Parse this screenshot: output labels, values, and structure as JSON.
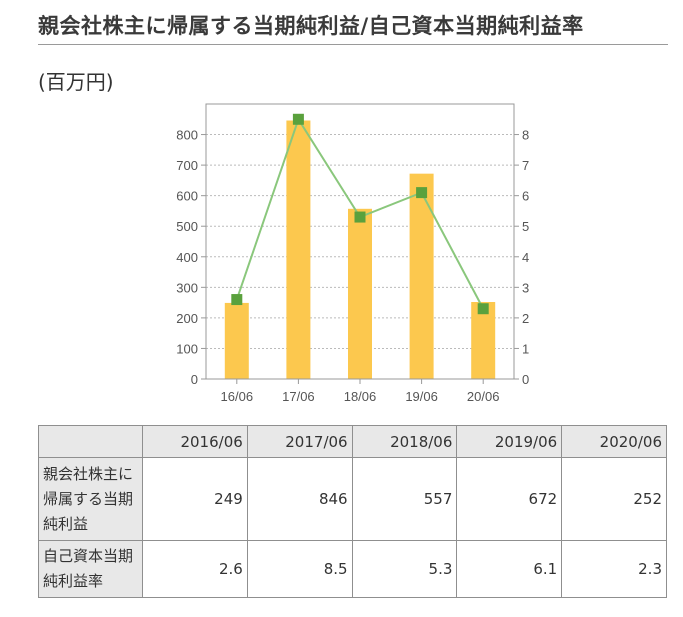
{
  "title": "親会社株主に帰属する当期純利益/自己資本当期純利益率",
  "unit_label": "(百万円)",
  "chart_data": {
    "type": "bar",
    "categories": [
      "16/06",
      "17/06",
      "18/06",
      "19/06",
      "20/06"
    ],
    "series": [
      {
        "name": "親会社株主に帰属する当期純利益",
        "type": "bar",
        "axis": "left",
        "values": [
          249,
          846,
          557,
          672,
          252
        ]
      },
      {
        "name": "自己資本当期純利益率",
        "type": "line",
        "axis": "right",
        "values": [
          2.6,
          8.5,
          5.3,
          6.1,
          2.3
        ]
      }
    ],
    "y_left": {
      "ylim": [
        0,
        900
      ],
      "ticks": [
        0,
        100,
        200,
        300,
        400,
        500,
        600,
        700,
        800
      ]
    },
    "y_right": {
      "ylim": [
        0,
        9
      ],
      "ticks": [
        0,
        1,
        2,
        3,
        4,
        5,
        6,
        7,
        8
      ]
    },
    "grid": true,
    "colors": {
      "bar": "#fcc84e",
      "line": "#8ac77c",
      "marker": "#5aa13d",
      "grid": "#bbbbbb",
      "frame": "#999999"
    }
  },
  "table": {
    "headers": [
      "",
      "2016/06",
      "2017/06",
      "2018/06",
      "2019/06",
      "2020/06"
    ],
    "rows": [
      {
        "label": "親会社株主に帰属する当期純利益",
        "values": [
          "249",
          "846",
          "557",
          "672",
          "252"
        ]
      },
      {
        "label": "自己資本当期純利益率",
        "values": [
          "2.6",
          "8.5",
          "5.3",
          "6.1",
          "2.3"
        ]
      }
    ]
  }
}
